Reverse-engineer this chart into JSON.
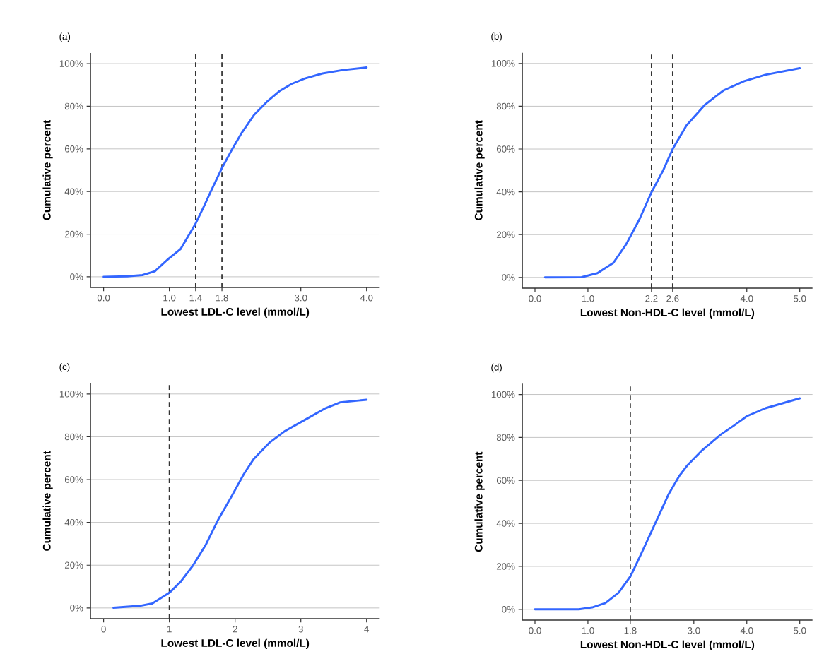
{
  "chart_data": [
    {
      "type": "line",
      "title": "(a)",
      "xlabel": "Lowest LDL-C level (mmol/L)",
      "ylabel": "Cumulative percent",
      "xlim": [
        -0.2,
        4.2
      ],
      "ylim": [
        -5,
        105
      ],
      "xticks": [
        {
          "value": 0,
          "label": "0.0"
        },
        {
          "value": 1,
          "label": "1.0"
        },
        {
          "value": 1.4,
          "label": "1.4"
        },
        {
          "value": 1.8,
          "label": "1.8"
        },
        {
          "value": 3,
          "label": "3.0"
        },
        {
          "value": 4,
          "label": "4.0"
        }
      ],
      "yticks": [
        {
          "value": 0,
          "label": "0%"
        },
        {
          "value": 20,
          "label": "20%"
        },
        {
          "value": 40,
          "label": "40%"
        },
        {
          "value": 60,
          "label": "60%"
        },
        {
          "value": 80,
          "label": "80%"
        },
        {
          "value": 100,
          "label": "100%"
        }
      ],
      "grid": "y",
      "ref_lines": [
        {
          "axis": "x",
          "value": 1.4,
          "color": "#333333",
          "line_style": "dashed"
        },
        {
          "axis": "x",
          "value": 1.8,
          "color": "#333333",
          "line_style": "dashed"
        }
      ],
      "series": [
        {
          "color": "#3366ff",
          "x": [
            0,
            0.36,
            0.59,
            0.78,
            0.97,
            1.17,
            1.4,
            1.51,
            1.63,
            1.8,
            1.94,
            2.09,
            2.29,
            2.48,
            2.67,
            2.86,
            3.06,
            3.33,
            3.64,
            4.0
          ],
          "values": [
            0,
            0.2,
            0.8,
            2.6,
            8,
            13,
            25,
            32,
            40,
            51,
            59,
            67,
            76,
            82,
            87,
            90.5,
            93,
            95.4,
            97,
            98.2
          ]
        }
      ]
    },
    {
      "type": "line",
      "title": "(b)",
      "xlabel": "Lowest Non-HDL-C level (mmol/L)",
      "ylabel": "Cumulative percent",
      "xlim": [
        -0.24,
        5.24
      ],
      "ylim": [
        -5,
        105
      ],
      "xticks": [
        {
          "value": 0,
          "label": "0.0"
        },
        {
          "value": 1,
          "label": "1.0"
        },
        {
          "value": 2.2,
          "label": "2.2"
        },
        {
          "value": 2.6,
          "label": "2.6"
        },
        {
          "value": 4,
          "label": "4.0"
        },
        {
          "value": 5,
          "label": "5.0"
        }
      ],
      "yticks": [
        {
          "value": 0,
          "label": "0%"
        },
        {
          "value": 20,
          "label": "20%"
        },
        {
          "value": 40,
          "label": "40%"
        },
        {
          "value": 60,
          "label": "60%"
        },
        {
          "value": 80,
          "label": "80%"
        },
        {
          "value": 100,
          "label": "100%"
        }
      ],
      "grid": "y",
      "ref_lines": [
        {
          "axis": "x",
          "value": 2.2,
          "color": "#333333",
          "line_style": "dashed"
        },
        {
          "axis": "x",
          "value": 2.6,
          "color": "#333333",
          "line_style": "dashed"
        }
      ],
      "series": [
        {
          "color": "#3366ff",
          "x": [
            0.19,
            0.88,
            1.18,
            1.48,
            1.72,
            1.97,
            2.2,
            2.42,
            2.6,
            2.86,
            3.21,
            3.56,
            3.95,
            4.35,
            5.0
          ],
          "values": [
            0,
            0.1,
            2,
            6.8,
            15.4,
            27,
            39.8,
            50,
            60,
            71,
            80.7,
            87.4,
            91.7,
            94.7,
            97.8
          ]
        }
      ]
    },
    {
      "type": "line",
      "title": "(c)",
      "xlabel": "Lowest LDL-C level (mmol/L)",
      "ylabel": "Cumulative percent",
      "xlim": [
        -0.2,
        4.2
      ],
      "ylim": [
        -5,
        105
      ],
      "xticks": [
        0,
        1,
        2,
        3,
        4
      ],
      "yticks": [
        {
          "value": 0,
          "label": "0%"
        },
        {
          "value": 20,
          "label": "20%"
        },
        {
          "value": 40,
          "label": "40%"
        },
        {
          "value": 60,
          "label": "60%"
        },
        {
          "value": 80,
          "label": "80%"
        },
        {
          "value": 100,
          "label": "100%"
        }
      ],
      "grid": "y",
      "ref_lines": [
        {
          "axis": "x",
          "value": 1,
          "color": "#333333",
          "line_style": "dashed"
        }
      ],
      "series": [
        {
          "color": "#3366ff",
          "x": [
            0.15,
            0.55,
            0.74,
            1.0,
            1.17,
            1.36,
            1.55,
            1.74,
            1.94,
            2.13,
            2.28,
            2.52,
            2.75,
            3.02,
            3.36,
            3.6,
            4.0
          ],
          "values": [
            0.1,
            1,
            2.1,
            7.1,
            12.2,
            19.9,
            29.3,
            41.1,
            51.8,
            62.4,
            69.5,
            77.2,
            82.5,
            87.2,
            93.1,
            96.1,
            97.3
          ]
        }
      ]
    },
    {
      "type": "line",
      "title": "(d)",
      "xlabel": "Lowest Non-HDL-C level (mmol/L)",
      "ylabel": "Cumulative percent",
      "xlim": [
        -0.24,
        5.24
      ],
      "ylim": [
        -5,
        105
      ],
      "xticks": [
        {
          "value": 0,
          "label": "0.0"
        },
        {
          "value": 1,
          "label": "1.0"
        },
        {
          "value": 1.8,
          "label": "1.8"
        },
        {
          "value": 3,
          "label": "3.0"
        },
        {
          "value": 4,
          "label": "4.0"
        },
        {
          "value": 5,
          "label": "5.0"
        }
      ],
      "yticks": [
        {
          "value": 0,
          "label": "0%"
        },
        {
          "value": 20,
          "label": "20%"
        },
        {
          "value": 40,
          "label": "40%"
        },
        {
          "value": 60,
          "label": "60%"
        },
        {
          "value": 80,
          "label": "80%"
        },
        {
          "value": 100,
          "label": "100%"
        }
      ],
      "grid": "y",
      "ref_lines": [
        {
          "axis": "x",
          "value": 1.8,
          "color": "#333333",
          "line_style": "dashed"
        }
      ],
      "series": [
        {
          "color": "#3366ff",
          "x": [
            0,
            0.83,
            1.08,
            1.33,
            1.58,
            1.81,
            2.02,
            2.27,
            2.52,
            2.72,
            2.87,
            3.16,
            3.51,
            3.76,
            4.0,
            4.35,
            5.0
          ],
          "values": [
            0,
            0,
            0.9,
            2.9,
            7.8,
            15.7,
            26.6,
            40,
            53.4,
            61.9,
            66.8,
            74.1,
            81.4,
            85.6,
            89.9,
            93.6,
            98.2
          ]
        }
      ]
    }
  ]
}
